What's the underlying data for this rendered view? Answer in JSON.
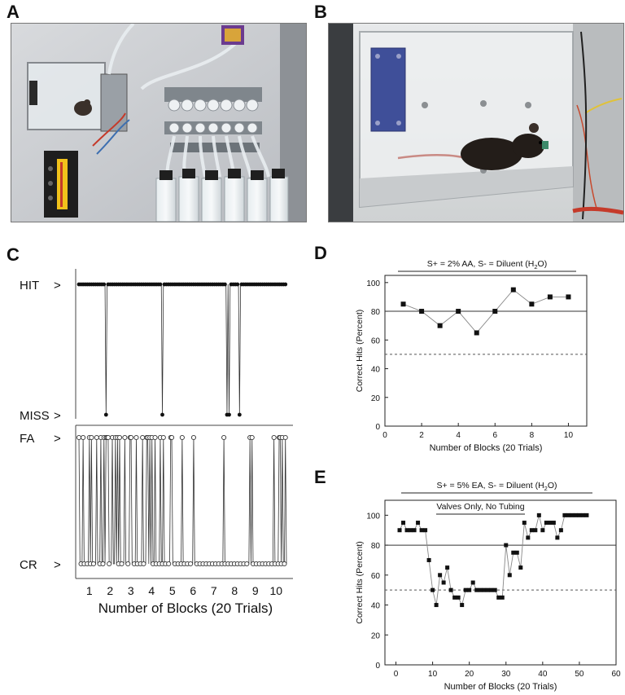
{
  "panels": {
    "a": {
      "letter": "A"
    },
    "b": {
      "letter": "B"
    },
    "c": {
      "letter": "C"
    },
    "d": {
      "letter": "D"
    },
    "e": {
      "letter": "E"
    }
  },
  "colors": {
    "ink": "#111111",
    "grid": "#555555",
    "photo_a_bg": "#c9ccd0",
    "photo_b_bg": "#d9dcde"
  },
  "chart_data": [
    {
      "id": "C",
      "type": "line",
      "xlabel": "Number of Blocks (20 Trials)",
      "x_ticks": [
        1,
        2,
        3,
        4,
        5,
        6,
        7,
        8,
        9,
        10
      ],
      "y_categories_top": [
        "HIT",
        "MISS"
      ],
      "y_categories_bottom": [
        "FA",
        "CR"
      ],
      "hit_miss_trials": 200,
      "miss_trials": [
        27,
        81,
        143,
        145,
        155
      ],
      "fa_trials": [
        1,
        5,
        11,
        13,
        18,
        22,
        25,
        27,
        28,
        29,
        33,
        36,
        38,
        40,
        45,
        50,
        51,
        56,
        62,
        66,
        67,
        69,
        71,
        74,
        79,
        82,
        89,
        90,
        100,
        111,
        140,
        165,
        167,
        188,
        193,
        194,
        196,
        199
      ],
      "marker_hit_miss": "filled",
      "marker_fa_cr": "open"
    },
    {
      "id": "D",
      "type": "line",
      "annotation": "S+ = 2% AA, S- = Diluent (H",
      "annotation_sub": "2",
      "annotation_end": "O)",
      "xlabel": "Number of Blocks (20 Trials)",
      "ylabel": "Correct Hits (Percent)",
      "x": [
        1,
        2,
        3,
        4,
        5,
        6,
        7,
        8,
        9,
        10
      ],
      "y": [
        85,
        80,
        70,
        80,
        65,
        80,
        95,
        85,
        90,
        90
      ],
      "xlim": [
        0,
        11
      ],
      "ylim": [
        0,
        105
      ],
      "x_ticks": [
        0,
        2,
        4,
        6,
        8,
        10
      ],
      "y_ticks": [
        0,
        20,
        40,
        60,
        80,
        100
      ],
      "reference_solid": 80,
      "reference_dashed": 50
    },
    {
      "id": "E",
      "type": "line",
      "annotation": "S+ = 5% EA, S- = Diluent (H",
      "annotation_sub": "2",
      "annotation_end": "O)",
      "sub_annotation": "Valves Only, No Tubing",
      "xlabel": "Number of Blocks (20 Trials)",
      "ylabel": "Correct Hits (Percent)",
      "x": [
        1,
        2,
        3,
        4,
        5,
        6,
        7,
        8,
        9,
        10,
        11,
        12,
        13,
        14,
        15,
        16,
        17,
        18,
        19,
        20,
        21,
        22,
        23,
        24,
        25,
        26,
        27,
        28,
        29,
        30,
        31,
        32,
        33,
        34,
        35,
        36,
        37,
        38,
        39,
        40,
        41,
        42,
        43,
        44,
        45,
        46,
        47,
        48,
        49,
        50,
        51,
        52
      ],
      "y": [
        90,
        95,
        90,
        90,
        90,
        95,
        90,
        90,
        70,
        50,
        40,
        60,
        55,
        65,
        50,
        45,
        45,
        40,
        50,
        50,
        55,
        50,
        50,
        50,
        50,
        50,
        50,
        45,
        45,
        80,
        60,
        75,
        75,
        65,
        95,
        85,
        90,
        90,
        100,
        90,
        95,
        95,
        95,
        85,
        90,
        100,
        100,
        100,
        100,
        100,
        100,
        100
      ],
      "xlim": [
        -3,
        60
      ],
      "ylim": [
        0,
        110
      ],
      "x_ticks": [
        0,
        10,
        20,
        30,
        40,
        50,
        60
      ],
      "y_ticks": [
        0,
        20,
        40,
        60,
        80,
        100
      ],
      "reference_solid": 80,
      "reference_dashed": 50
    }
  ]
}
